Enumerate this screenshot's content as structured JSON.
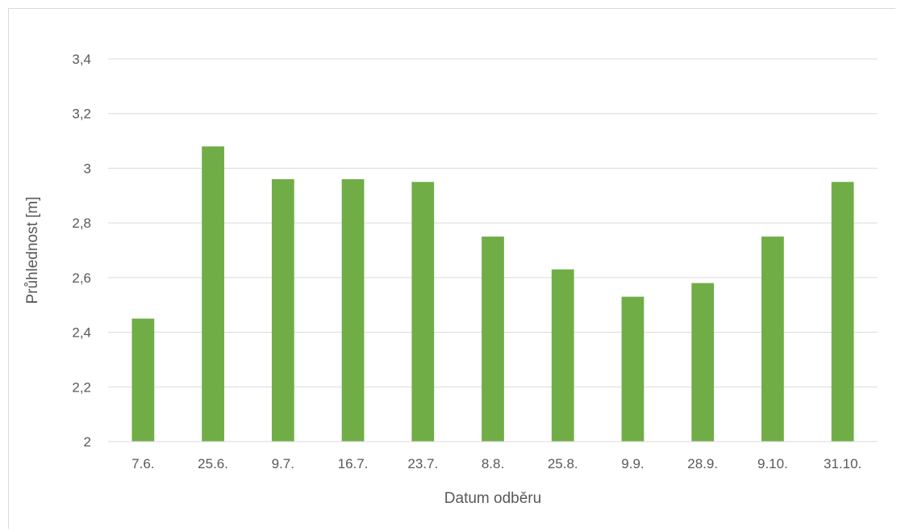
{
  "chart_data": {
    "type": "bar",
    "categories": [
      "7.6.",
      "25.6.",
      "9.7.",
      "16.7.",
      "23.7.",
      "8.8.",
      "25.8.",
      "9.9.",
      "28.9.",
      "9.10.",
      "31.10."
    ],
    "values": [
      2.45,
      3.08,
      2.96,
      2.96,
      2.95,
      2.75,
      2.63,
      2.53,
      2.58,
      2.75,
      2.95
    ],
    "title": "",
    "xlabel": "Datum odběru",
    "ylabel": "Průhlednost [m]",
    "ylim": [
      2,
      3.4
    ],
    "yticks": [
      2,
      2.2,
      2.4,
      2.6,
      2.8,
      3,
      3.2,
      3.4
    ],
    "ytick_labels": [
      "2",
      "2,2",
      "2,4",
      "2,6",
      "2,8",
      "3",
      "3,2",
      "3,4"
    ],
    "grid": true,
    "legend": "none",
    "bar_color": "#70ad47",
    "grid_color": "#d9d9d9",
    "text_color": "#595959"
  }
}
